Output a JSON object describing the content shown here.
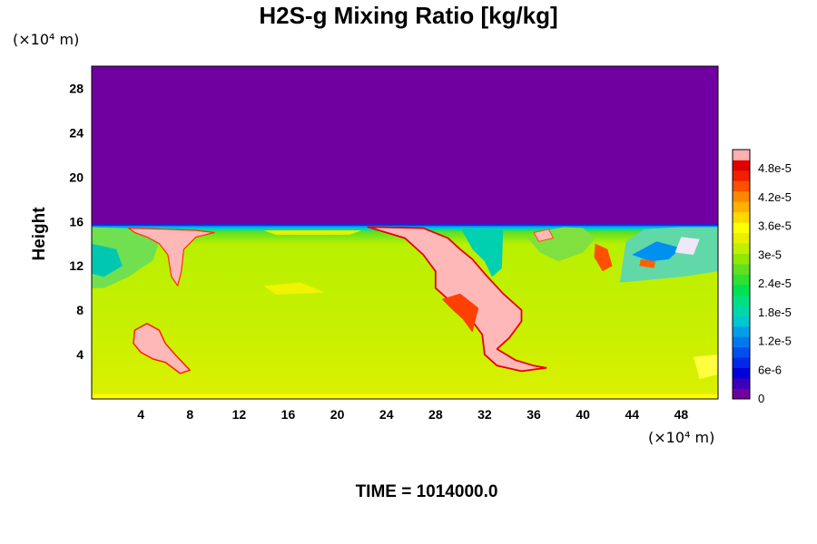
{
  "chart_data": {
    "type": "heatmap",
    "title": "H2S-g Mixing Ratio [kg/kg]",
    "xlabel": "",
    "ylabel": "Height",
    "x_unit_label": "(×10⁴ m)",
    "y_unit_label": "(×10⁴ m)",
    "xlim": [
      0,
      51
    ],
    "ylim": [
      0,
      30
    ],
    "x_ticks": [
      "4",
      "8",
      "12",
      "16",
      "20",
      "24",
      "28",
      "32",
      "36",
      "40",
      "44",
      "48"
    ],
    "x_tick_values": [
      4,
      8,
      12,
      16,
      20,
      24,
      28,
      32,
      36,
      40,
      44,
      48
    ],
    "y_ticks": [
      "4",
      "8",
      "12",
      "16",
      "20",
      "24",
      "28"
    ],
    "y_tick_values": [
      4,
      8,
      12,
      16,
      20,
      24,
      28
    ],
    "field_summary": {
      "background_top_value": 0,
      "boundary_height": 15.5,
      "lower_layer_typical_value": 3.4e-05,
      "max_value": 5.2e-05
    },
    "colorbar": {
      "tick_labels": [
        "0",
        "6e-6",
        "1.2e-5",
        "1.8e-5",
        "2.4e-5",
        "3e-5",
        "3.6e-5",
        "4.2e-5",
        "4.8e-5"
      ],
      "tick_values": [
        0,
        6e-06,
        1.2e-05,
        1.8e-05,
        2.4e-05,
        3e-05,
        3.6e-05,
        4.2e-05,
        4.8e-05
      ],
      "min": 0,
      "max": 5.2e-05,
      "colors": [
        "#7000a0",
        "#3c00b8",
        "#0000d8",
        "#0028e8",
        "#0050f0",
        "#0078f0",
        "#00a0e8",
        "#00c8d0",
        "#00d8a8",
        "#00e080",
        "#00e050",
        "#30e030",
        "#60e020",
        "#90e800",
        "#c0f000",
        "#e8f000",
        "#ffff00",
        "#ffd800",
        "#ffb000",
        "#ff8800",
        "#ff5000",
        "#f02000",
        "#e00000",
        "#ffb0b0"
      ]
    },
    "colors": {
      "upper": "#7000a0",
      "background": "#c8f000",
      "plume": "#ffb8b8"
    }
  },
  "time_label": {
    "prefix": "TIME = ",
    "value": "1014000.0"
  }
}
